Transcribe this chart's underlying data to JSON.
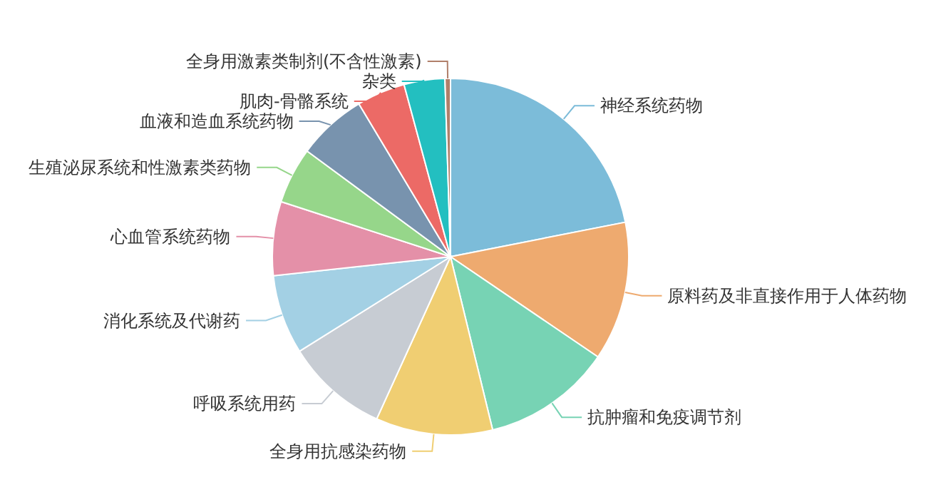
{
  "chart_data": {
    "type": "pie",
    "categories": [
      "神经系统药物",
      "原料药及非直接作用于人体药物",
      "抗肿瘤和免疫调节剂",
      "全身用抗感染药物",
      "呼吸系统用药",
      "消化系统及代谢药",
      "心血管系统药物",
      "生殖泌尿系统和性激素类药物",
      "血液和造血系统药物",
      "肌肉-骨骼系统",
      "杂类",
      "全身用激素类制剂(不含性激素)"
    ],
    "values": [
      21.9,
      12.6,
      11.7,
      10.6,
      9.3,
      7.2,
      6.7,
      5.1,
      6.3,
      4.4,
      3.7,
      0.5
    ],
    "colors": [
      "#7cbcd9",
      "#eeaa6f",
      "#77d3b4",
      "#f0ce72",
      "#c7ccd3",
      "#a3d0e4",
      "#e490a8",
      "#96d68a",
      "#7893ae",
      "#ec6a66",
      "#23bfc0",
      "#b07f6a"
    ]
  }
}
